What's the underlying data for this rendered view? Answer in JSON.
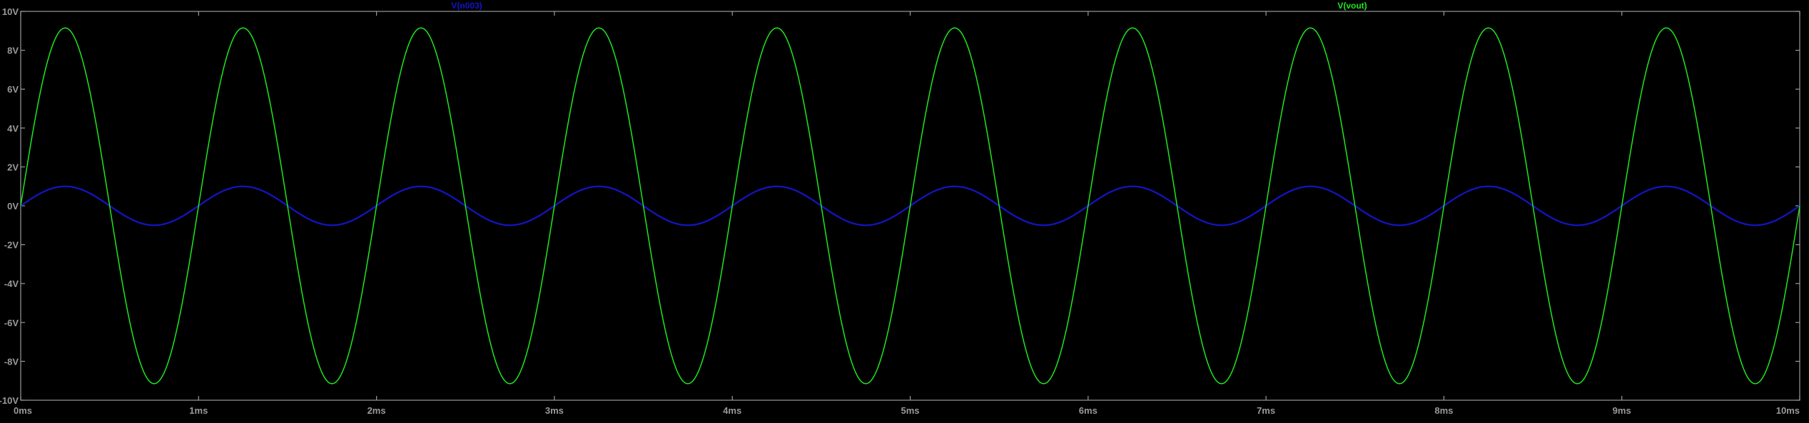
{
  "chart_data": {
    "type": "line",
    "x_unit": "ms",
    "y_unit": "V",
    "xlim": [
      0,
      10
    ],
    "ylim": [
      -10,
      10
    ],
    "x_ticks": [
      "0ms",
      "1ms",
      "2ms",
      "3ms",
      "4ms",
      "5ms",
      "6ms",
      "7ms",
      "8ms",
      "9ms",
      "10ms"
    ],
    "y_ticks": [
      "10V",
      "8V",
      "6V",
      "4V",
      "2V",
      "0V",
      "-2V",
      "-4V",
      "-6V",
      "-8V",
      "-10V"
    ],
    "grid": false,
    "background": "#000000",
    "axis_color": "#9a9a9a",
    "series": [
      {
        "name": "V(n003)",
        "color": "#1414c8",
        "waveform": "sine",
        "amplitude": 1.0,
        "frequency_khz": 1.0,
        "phase_deg": 0,
        "offset": 0
      },
      {
        "name": "V(vout)",
        "color": "#1ee61e",
        "waveform": "sine",
        "amplitude": 9.15,
        "frequency_khz": 1.0,
        "phase_deg": 0,
        "offset": 0
      }
    ]
  }
}
